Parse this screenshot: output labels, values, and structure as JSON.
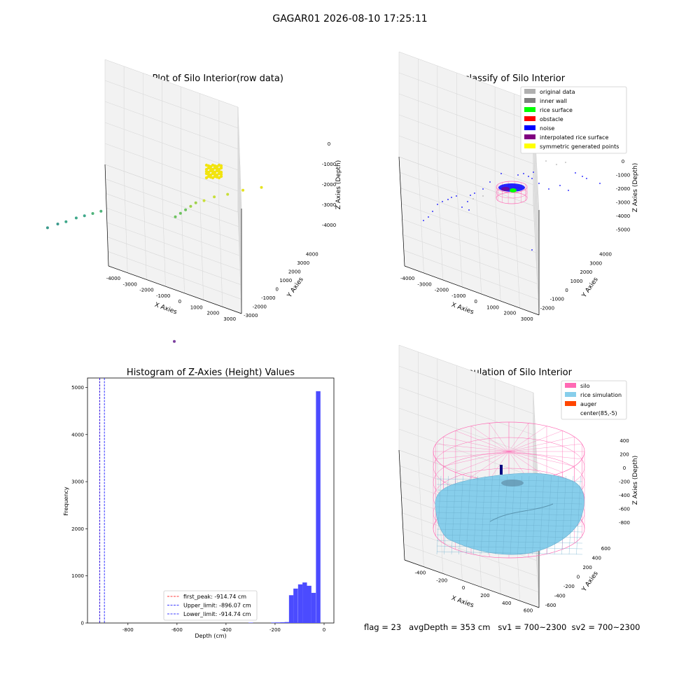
{
  "figure": {
    "suptitle": "GAGAR01 2026-08-10 17:25:11",
    "status_line": "flag = 23   avgDepth = 353 cm   sv1 = 700~2300  sv2 = 700~2300"
  },
  "colors": {
    "pane": "#f2f2f2",
    "pane_dark": "#e9e9e9",
    "grid": "#d9d9d9",
    "original": "#b0b0b0",
    "inner_wall": "#808080",
    "rice_surface": "#00ff00",
    "obstacle": "#ff0000",
    "noise": "#0000ff",
    "interpolated": "#800080",
    "symmetric": "#ffff00",
    "silo": "#ff69b4",
    "rice_sim": "#87ceeb",
    "auger": "#ff4500",
    "hist_bar": "#4b4bff"
  },
  "chart_data": [
    {
      "type": "scatter",
      "title": "3D Plot of Silo Interior(row data)",
      "xlabel": "X Axies",
      "ylabel": "Y Axies",
      "zlabel": "Z Axies (Depth)",
      "xticks": [
        "-4000",
        "-3000",
        "-2000",
        "-1000",
        "0",
        "1000",
        "2000",
        "3000"
      ],
      "yticks": [
        "-3000",
        "-2000",
        "-1000",
        "0",
        "1000",
        "2000",
        "3000",
        "4000"
      ],
      "zticks": [
        "0",
        "-1000",
        "-2000",
        "-3000",
        "-4000"
      ],
      "colormap": "viridis (by depth)",
      "series": [
        {
          "x": [
            -3300,
            -3100,
            -2900,
            -2700,
            -2500,
            -2300,
            -2100
          ],
          "y": [
            -1200,
            -1000,
            -900,
            -700,
            -600,
            -500,
            -400
          ],
          "z": [
            -2200,
            -2100,
            -2000,
            -1900,
            -1800,
            -1700,
            -1600
          ]
        },
        {
          "x": [
            -300,
            -200,
            -100,
            0,
            100,
            300,
            500,
            800,
            1100,
            1500
          ],
          "y": [
            500,
            600,
            700,
            800,
            900,
            1000,
            1200,
            1400,
            1700,
            2000
          ],
          "z": [
            -1500,
            -1400,
            -1300,
            -1200,
            -1100,
            -1000,
            -900,
            -800,
            -700,
            -600
          ]
        },
        {
          "x": [
            600
          ],
          "y": [
            -1000
          ],
          "z": [
            -4300
          ]
        }
      ]
    },
    {
      "type": "scatter",
      "title": "3D classify of Silo Interior",
      "xlabel": "X Axies",
      "ylabel": "Y Axies",
      "zlabel": "Z Axies (Depth)",
      "xticks": [
        "-4000",
        "-3000",
        "-2000",
        "-1000",
        "0",
        "1000",
        "2000",
        "3000"
      ],
      "yticks": [
        "-2000",
        "-1000",
        "0",
        "1000",
        "2000",
        "3000",
        "4000"
      ],
      "zticks": [
        "0",
        "-1000",
        "-2000",
        "-3000",
        "-4000",
        "-5000"
      ],
      "legend": [
        {
          "label": "original data",
          "color": "#b0b0b0"
        },
        {
          "label": "inner wall",
          "color": "#808080"
        },
        {
          "label": "rice surface",
          "color": "#00ff00"
        },
        {
          "label": "obstacle",
          "color": "#ff0000"
        },
        {
          "label": "noise",
          "color": "#0000ff"
        },
        {
          "label": "interpolated rice surface",
          "color": "#800080"
        },
        {
          "label": "symmetric generated points",
          "color": "#ffff00"
        }
      ],
      "legend_location": "upper right"
    },
    {
      "type": "bar",
      "title": "Histogram of Z-Axies (Height) Values",
      "xlabel": "Depth (cm)",
      "ylabel": "Frequency",
      "xlim": [
        -965,
        40
      ],
      "ylim": [
        0,
        5200
      ],
      "xticks": [
        "-800",
        "-600",
        "-400",
        "-200",
        "0"
      ],
      "yticks": [
        "0",
        "1000",
        "2000",
        "3000",
        "4000",
        "5000"
      ],
      "bin_width": 18.3,
      "bins": [
        {
          "x": -299,
          "count": 8
        },
        {
          "x": -207,
          "count": 10
        },
        {
          "x": -189,
          "count": 12
        },
        {
          "x": -170,
          "count": 15
        },
        {
          "x": -152,
          "count": 20
        },
        {
          "x": -134,
          "count": 590
        },
        {
          "x": -116,
          "count": 730
        },
        {
          "x": -97,
          "count": 820
        },
        {
          "x": -79,
          "count": 860
        },
        {
          "x": -61,
          "count": 790
        },
        {
          "x": -43,
          "count": 640
        },
        {
          "x": -24,
          "count": 4920
        }
      ],
      "vlines": [
        {
          "label": "first_peak: -914.74 cm",
          "x": -914.74,
          "color": "#ff0000"
        },
        {
          "label": "Upper_limit: -896.07 cm",
          "x": -896.07,
          "color": "#0000ff"
        },
        {
          "label": "Lower_limit: -914.74 cm",
          "x": -914.74,
          "color": "#0000ff"
        }
      ],
      "legend_location": "lower center"
    },
    {
      "type": "surface",
      "title": "3D simulation of Silo Interior",
      "xlabel": "X Axies",
      "ylabel": "Y Axies",
      "zlabel": "Z Axies (Depth)",
      "xticks": [
        "-400",
        "-200",
        "0",
        "200",
        "400",
        "600"
      ],
      "yticks": [
        "-600",
        "-400",
        "-200",
        "0",
        "200",
        "400",
        "600"
      ],
      "zticks": [
        "400",
        "200",
        "0",
        "-200",
        "-400",
        "-600",
        "-800"
      ],
      "legend": [
        {
          "label": "silo",
          "color": "#ff69b4"
        },
        {
          "label": "rice simulation",
          "color": "#87ceeb"
        },
        {
          "label": "auger",
          "color": "#ff4500"
        },
        {
          "label": "center(85,-5)",
          "color": "none"
        }
      ],
      "legend_location": "upper right"
    }
  ]
}
